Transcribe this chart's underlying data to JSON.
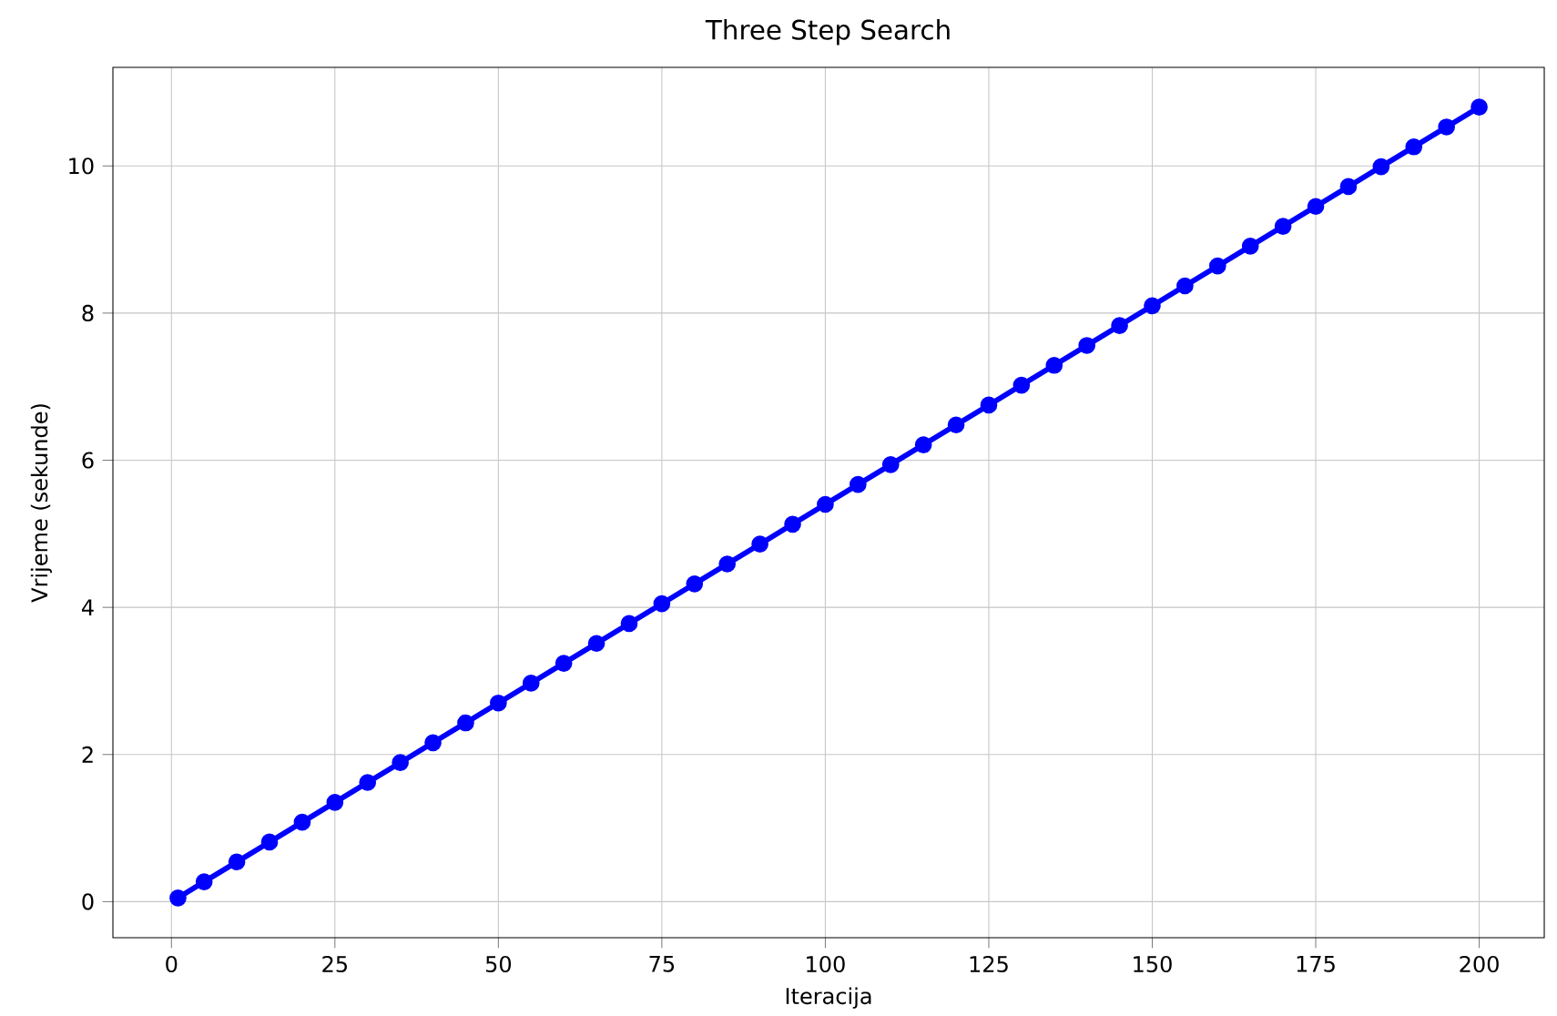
{
  "chart_data": {
    "type": "line",
    "title": "Three Step Search",
    "xlabel": "Iteracija",
    "ylabel": "Vrijeme (sekunde)",
    "x": [
      1,
      5,
      10,
      15,
      20,
      25,
      30,
      35,
      40,
      45,
      50,
      55,
      60,
      65,
      70,
      75,
      80,
      85,
      90,
      95,
      100,
      105,
      110,
      115,
      120,
      125,
      130,
      135,
      140,
      145,
      150,
      155,
      160,
      165,
      170,
      175,
      180,
      185,
      190,
      195,
      200
    ],
    "series": [
      {
        "color": "#0000ff",
        "values": [
          0.05,
          0.27,
          0.54,
          0.81,
          1.08,
          1.35,
          1.62,
          1.89,
          2.16,
          2.43,
          2.7,
          2.97,
          3.24,
          3.51,
          3.78,
          4.05,
          4.32,
          4.59,
          4.86,
          5.13,
          5.4,
          5.67,
          5.94,
          6.21,
          6.48,
          6.75,
          7.02,
          7.29,
          7.56,
          7.83,
          8.1,
          8.37,
          8.64,
          8.91,
          9.18,
          9.45,
          9.72,
          9.99,
          10.26,
          10.53,
          10.8
        ]
      }
    ],
    "xlim": [
      -8.95,
      209.95
    ],
    "ylim": [
      -0.49,
      11.34
    ],
    "xticks": [
      0,
      25,
      50,
      75,
      100,
      125,
      150,
      175,
      200
    ],
    "yticks": [
      0,
      2,
      4,
      6,
      8,
      10
    ],
    "grid": true,
    "marker": "circle",
    "line_style": "solid"
  }
}
